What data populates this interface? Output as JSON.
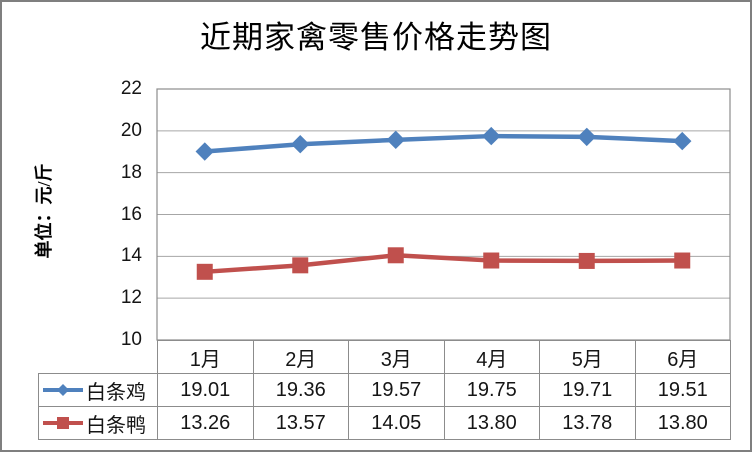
{
  "chart": {
    "title": "近期家禽零售价格走势图",
    "y_axis_label": "单位：元/斤"
  },
  "chart_data": {
    "type": "line",
    "title": "近期家禽零售价格走势图",
    "ylabel": "单位：元/斤",
    "xlabel": "",
    "categories": [
      "1月",
      "2月",
      "3月",
      "4月",
      "5月",
      "6月"
    ],
    "series": [
      {
        "name": "白条鸡",
        "marker": "diamond",
        "color": "#4F81BD",
        "values": [
          19.01,
          19.36,
          19.57,
          19.75,
          19.71,
          19.51
        ],
        "labels": [
          "19.01",
          "19.36",
          "19.57",
          "19.75",
          "19.71",
          "19.51"
        ]
      },
      {
        "name": "白条鸭",
        "marker": "square",
        "color": "#C0504D",
        "values": [
          13.26,
          13.57,
          14.05,
          13.8,
          13.78,
          13.8
        ],
        "labels": [
          "13.26",
          "13.57",
          "14.05",
          "13.80",
          "13.78",
          "13.80"
        ]
      }
    ],
    "ylim": [
      10,
      22
    ],
    "yticks": [
      22,
      20,
      18,
      16,
      14,
      12,
      10
    ],
    "grid": true,
    "legend_position": "data-table-left",
    "data_table_shown": true
  },
  "colors": {
    "series_chicken": "#4F81BD",
    "series_duck": "#C0504D",
    "gridline": "#A6A6A6",
    "plot_border": "#8C8C8C",
    "table_border": "#8C8C8C",
    "outer_border": "#7F7F7F",
    "text": "#151515",
    "background": "#FFFFFF"
  }
}
